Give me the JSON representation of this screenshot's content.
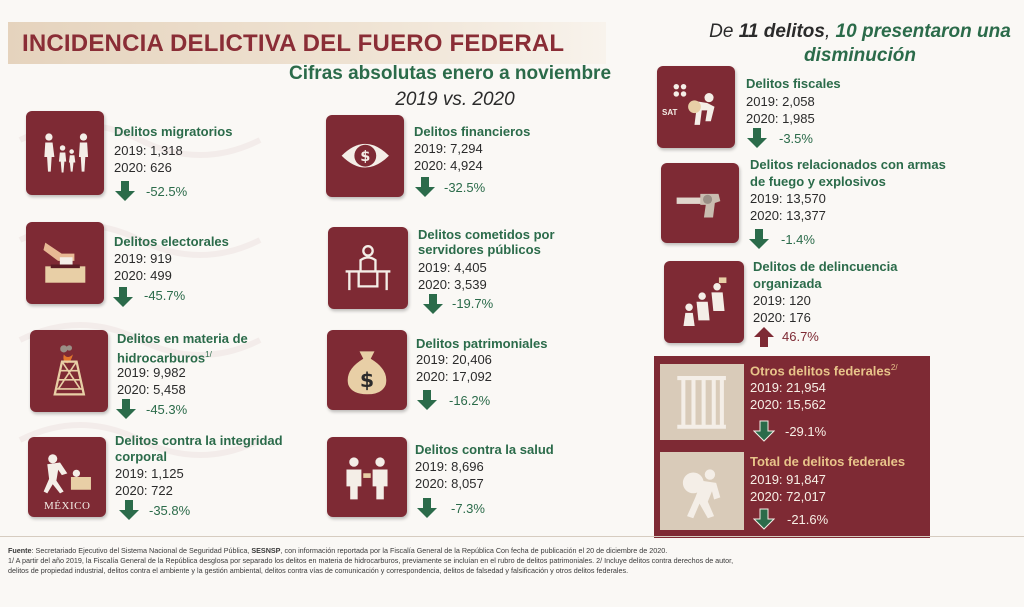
{
  "title": "INCIDENCIA DELICTIVA DEL FUERO FEDERAL",
  "subtitle": "Cifras absolutas enero a noviembre",
  "period": "2019 vs. 2020",
  "headline": {
    "prefix": "De ",
    "count_text": "11 delitos",
    "sep": ", ",
    "highlight": "10 presentaron una disminución"
  },
  "colors": {
    "maroon": "#7e2a34",
    "green": "#2b6b4a",
    "gold": "#e8c48a"
  },
  "crimes": {
    "migratorios": {
      "name": "Delitos migratorios",
      "y2019": "2019: 1,318",
      "y2020": "2020: 626",
      "change": "-52.5%",
      "icon": "family-walking-icon",
      "trend": "down"
    },
    "electorales": {
      "name": "Delitos electorales",
      "y2019": "2019: 919",
      "y2020": "2020: 499",
      "change": "-45.7%",
      "icon": "ballot-box-icon",
      "trend": "down"
    },
    "hidrocarburos": {
      "name": "Delitos en materia de",
      "name2": "hidrocarburos",
      "note": "1/",
      "y2019": "2019: 9,982",
      "y2020": "2020: 5,458",
      "change": "-45.3%",
      "icon": "oil-derrick-icon",
      "trend": "down"
    },
    "integridad": {
      "name": "Delitos contra la integridad",
      "name2": "corporal",
      "y2019": "2019: 1,125",
      "y2020": "2020: 722",
      "change": "-35.8%",
      "icon": "assault-icon",
      "watermark": "MÉXICO",
      "trend": "down"
    },
    "financieros": {
      "name": "Delitos financieros",
      "y2019": "2019: 7,294",
      "y2020": "2020: 4,924",
      "change": "-32.5%",
      "icon": "money-eye-icon",
      "trend": "down"
    },
    "servidores": {
      "name": "Delitos cometidos por",
      "name2": "servidores públicos",
      "y2019": "2019: 4,405",
      "y2020": "2020: 3,539",
      "change": "-19.7%",
      "icon": "official-desk-icon",
      "trend": "down"
    },
    "patrimoniales": {
      "name": "Delitos patrimoniales",
      "y2019": "2019: 20,406",
      "y2020": "2020: 17,092",
      "change": "-16.2%",
      "icon": "money-bag-icon",
      "trend": "down"
    },
    "salud": {
      "name": "Delitos contra la salud",
      "y2019": "2019: 8,696",
      "y2020": "2020: 8,057",
      "change": "-7.3%",
      "icon": "drug-exchange-icon",
      "trend": "down"
    },
    "fiscales": {
      "name": "Delitos fiscales",
      "y2019": "2019: 2,058",
      "y2020": "2020: 1,985",
      "change": "-3.5%",
      "icon": "sat-thief-icon",
      "icon_label": "SAT",
      "trend": "down"
    },
    "armas": {
      "name": "Delitos relacionados con armas",
      "name2": "de fuego y explosivos",
      "y2019": "2019: 13,570",
      "y2020": "2020: 13,377",
      "change": "-1.4%",
      "icon": "revolver-icon",
      "trend": "down"
    },
    "delincuencia": {
      "name": "Delitos de delincuencia",
      "name2": "organizada",
      "y2019": "2019: 120",
      "y2020": "2020: 176",
      "change": "46.7%",
      "icon": "gang-icon",
      "trend": "up"
    }
  },
  "otros": {
    "name": "Otros delitos federales",
    "note": "2/",
    "y2019": "2019: 21,954",
    "y2020": "2020: 15,562",
    "change": "-29.1%",
    "icon": "jail-bars-icon"
  },
  "total": {
    "name": "Total de delitos federales",
    "y2019": "2019: 91,847",
    "y2020": "2020: 72,017",
    "change": "-21.6%",
    "icon": "thief-icon"
  },
  "footer": {
    "source_label": "Fuente",
    "source_a": ": Secretariado Ejecutivo del Sistema Nacional de Seguridad Pública, ",
    "source_b": "SESNSP",
    "source_c": ", con información reportada por la Fiscalía General de la República Con fecha de publicación el 20 de diciembre de 2020.",
    "note1": "1/ A partir del año 2019, la Fiscalía General de la República desglosa por separado los delitos en materia de hidrocarburos, previamente se incluían en el rubro de delitos patrimoniales. 2/ Incluye delitos contra derechos de autor,",
    "note2": "delitos de propiedad industrial, delitos contra el ambiente y la gestión ambiental, delitos contra vías de comunicación y correspondencia, delitos de falsedad y falsificación y otros delitos federales."
  }
}
